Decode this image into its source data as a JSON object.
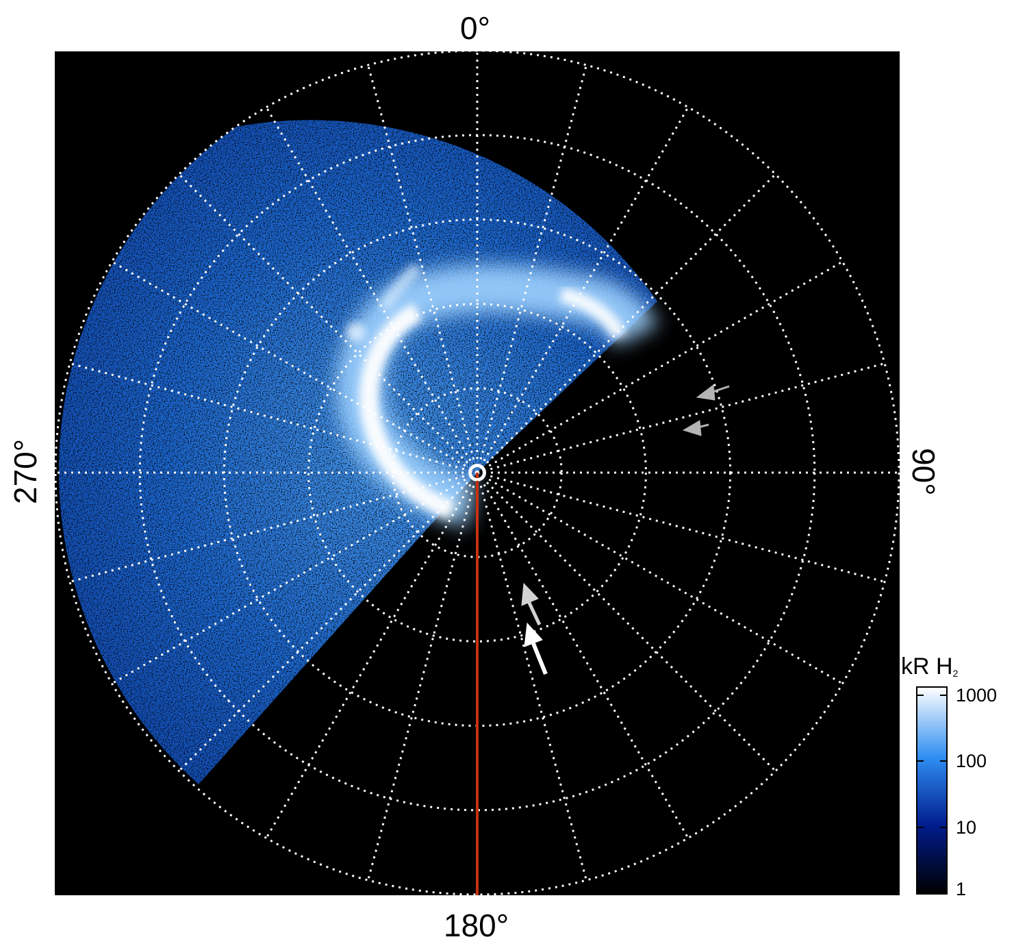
{
  "plot": {
    "type": "polar-projection-image",
    "background": "#000000",
    "angle_labels": {
      "top": "0°",
      "right": "90°",
      "bottom": "180°",
      "left": "270°"
    },
    "grid": {
      "rings": 5,
      "meridian_step_deg": 15,
      "style": "dotted",
      "color": "#ffffff"
    },
    "meridian_marker": {
      "angle_deg": 180,
      "color": "#c83010"
    },
    "arrows": [
      {
        "color": "#b4b4b4",
        "direction": "toward-center"
      },
      {
        "color": "#b4b4b4",
        "direction": "toward-center"
      },
      {
        "color": "#d2d2d2",
        "direction": "toward-center"
      },
      {
        "color": "#ffffff",
        "direction": "toward-center"
      }
    ]
  },
  "colorbar": {
    "title": "kR H",
    "title_sub": "2",
    "scale": "log",
    "range": [
      1,
      1000
    ],
    "ticks": [
      "1000",
      "100",
      "10",
      "1"
    ],
    "colors": [
      "#ffffff",
      "#2f8ef2",
      "#001c8c",
      "#000000"
    ]
  }
}
